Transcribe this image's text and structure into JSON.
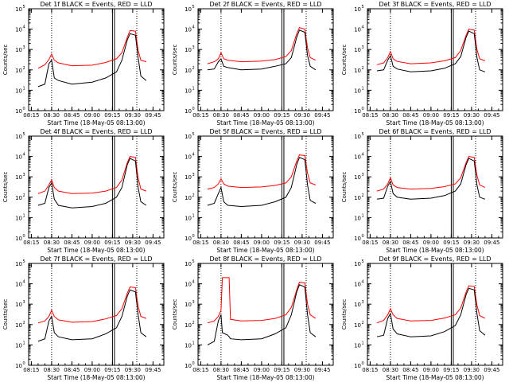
{
  "ytick_labels": [
    "10",
    "10",
    "10",
    "10",
    "10",
    "10"
  ],
  "ytick_exponents": [
    "0",
    "1",
    "2",
    "3",
    "4",
    "5"
  ],
  "xtick_labels": [
    "08:15",
    "08:30",
    "08:45",
    "09:00",
    "09:15",
    "09:30",
    "09:45"
  ],
  "chart_data": [
    {
      "type": "line",
      "title": "Det 1f BLACK = Events, RED = LLD",
      "xlabel": "Start Time (18-May-05 08:13:00)",
      "ylabel": "Counts/sec",
      "ylog": true,
      "ylim": [
        1,
        100000
      ],
      "x": [
        "08:20",
        "08:25",
        "08:28",
        "08:30",
        "08:32",
        "08:35",
        "08:45",
        "09:00",
        "09:10",
        "09:18",
        "09:22",
        "09:26",
        "09:28",
        "09:32",
        "09:34",
        "09:36",
        "09:40"
      ],
      "series": [
        {
          "color": "#ff0000",
          "values": [
            120,
            180,
            320,
            600,
            300,
            220,
            160,
            170,
            230,
            350,
            700,
            4000,
            8500,
            8000,
            900,
            300,
            250
          ]
        },
        {
          "color": "#000000",
          "values": [
            15,
            20,
            200,
            300,
            40,
            30,
            20,
            25,
            40,
            80,
            300,
            3000,
            6000,
            5000,
            400,
            50,
            30
          ]
        }
      ]
    },
    {
      "type": "line",
      "title": "Det 2f BLACK = Events, RED = LLD",
      "xlabel": "Start Time (18-May-05 08:13:00)",
      "ylabel": "Counts/sec",
      "ylog": true,
      "ylim": [
        1,
        100000
      ],
      "x": [
        "08:20",
        "08:25",
        "08:28",
        "08:30",
        "08:32",
        "08:35",
        "08:45",
        "09:00",
        "09:10",
        "09:18",
        "09:22",
        "09:26",
        "09:28",
        "09:32",
        "09:34",
        "09:36",
        "09:40"
      ],
      "series": [
        {
          "color": "#ff0000",
          "values": [
            200,
            250,
            350,
            700,
            350,
            300,
            250,
            270,
            320,
            450,
            900,
            6000,
            12000,
            10000,
            1200,
            400,
            300
          ]
        },
        {
          "color": "#000000",
          "values": [
            100,
            110,
            250,
            350,
            150,
            130,
            100,
            110,
            150,
            200,
            400,
            4000,
            9000,
            7000,
            500,
            150,
            100
          ]
        }
      ]
    },
    {
      "type": "line",
      "title": "Det 3f BLACK = Events, RED = LLD",
      "xlabel": "Start Time (18-May-05 08:13:00)",
      "ylabel": "Counts/sec",
      "ylog": true,
      "ylim": [
        1,
        100000
      ],
      "x": [
        "08:20",
        "08:25",
        "08:28",
        "08:30",
        "08:32",
        "08:35",
        "08:45",
        "09:00",
        "09:10",
        "09:18",
        "09:22",
        "09:26",
        "09:28",
        "09:32",
        "09:34",
        "09:36",
        "09:40"
      ],
      "series": [
        {
          "color": "#ff0000",
          "values": [
            180,
            220,
            400,
            800,
            350,
            260,
            200,
            220,
            280,
            400,
            900,
            5000,
            10000,
            9000,
            1000,
            350,
            280
          ]
        },
        {
          "color": "#000000",
          "values": [
            90,
            100,
            300,
            500,
            150,
            110,
            80,
            90,
            120,
            200,
            450,
            4000,
            8000,
            6000,
            400,
            100,
            80
          ]
        }
      ]
    },
    {
      "type": "line",
      "title": "Det 4f BLACK = Events, RED = LLD",
      "xlabel": "Start Time (18-May-05 08:13:00)",
      "ylabel": "Counts/sec",
      "ylog": true,
      "ylim": [
        1,
        100000
      ],
      "x": [
        "08:20",
        "08:25",
        "08:28",
        "08:30",
        "08:32",
        "08:35",
        "08:45",
        "09:00",
        "09:10",
        "09:18",
        "09:22",
        "09:26",
        "09:28",
        "09:32",
        "09:34",
        "09:36",
        "09:40"
      ],
      "series": [
        {
          "color": "#ff0000",
          "values": [
            150,
            200,
            400,
            700,
            300,
            200,
            150,
            160,
            200,
            300,
            700,
            5000,
            10000,
            9000,
            900,
            250,
            200
          ]
        },
        {
          "color": "#000000",
          "values": [
            40,
            50,
            300,
            500,
            80,
            40,
            30,
            35,
            50,
            100,
            300,
            4000,
            8000,
            6000,
            300,
            60,
            40
          ]
        }
      ]
    },
    {
      "type": "line",
      "title": "Det 5f BLACK = Events, RED = LLD",
      "xlabel": "Start Time (18-May-05 08:13:00)",
      "ylabel": "Counts/sec",
      "ylog": true,
      "ylim": [
        1,
        100000
      ],
      "x": [
        "08:20",
        "08:25",
        "08:28",
        "08:30",
        "08:32",
        "08:35",
        "08:45",
        "09:00",
        "09:10",
        "09:18",
        "09:22",
        "09:26",
        "09:28",
        "09:32",
        "09:34",
        "09:36",
        "09:40"
      ],
      "series": [
        {
          "color": "#ff0000",
          "values": [
            250,
            300,
            450,
            800,
            450,
            350,
            300,
            320,
            380,
            500,
            1000,
            6000,
            12000,
            11000,
            1500,
            500,
            400
          ]
        },
        {
          "color": "#000000",
          "values": [
            40,
            50,
            150,
            300,
            60,
            40,
            35,
            40,
            60,
            100,
            300,
            4000,
            9000,
            7000,
            400,
            70,
            50
          ]
        }
      ]
    },
    {
      "type": "line",
      "title": "Det 6f BLACK = Events, RED = LLD",
      "xlabel": "Start Time (18-May-05 08:13:00)",
      "ylabel": "Counts/sec",
      "ylog": true,
      "ylim": [
        1,
        100000
      ],
      "x": [
        "08:20",
        "08:25",
        "08:28",
        "08:30",
        "08:32",
        "08:35",
        "08:45",
        "09:00",
        "09:10",
        "09:18",
        "09:22",
        "09:26",
        "09:28",
        "09:32",
        "09:34",
        "09:36",
        "09:40"
      ],
      "series": [
        {
          "color": "#ff0000",
          "values": [
            200,
            250,
            450,
            900,
            400,
            300,
            250,
            270,
            330,
            450,
            900,
            5000,
            10000,
            9000,
            1200,
            400,
            300
          ]
        },
        {
          "color": "#000000",
          "values": [
            80,
            90,
            350,
            600,
            150,
            100,
            80,
            90,
            120,
            200,
            450,
            4000,
            8000,
            6000,
            400,
            100,
            80
          ]
        }
      ]
    },
    {
      "type": "line",
      "title": "Det 7f BLACK = Events, RED = LLD",
      "xlabel": "Start Time (18-May-05 08:13:00)",
      "ylabel": "Counts/sec",
      "ylog": true,
      "ylim": [
        1,
        100000
      ],
      "x": [
        "08:20",
        "08:25",
        "08:28",
        "08:30",
        "08:32",
        "08:35",
        "08:45",
        "09:00",
        "09:10",
        "09:18",
        "09:22",
        "09:26",
        "09:28",
        "09:32",
        "09:34",
        "09:36",
        "09:40"
      ],
      "series": [
        {
          "color": "#ff0000",
          "values": [
            120,
            150,
            250,
            500,
            250,
            170,
            130,
            140,
            190,
            280,
            600,
            3500,
            7000,
            6500,
            800,
            250,
            200
          ]
        },
        {
          "color": "#000000",
          "values": [
            15,
            20,
            150,
            250,
            40,
            25,
            18,
            20,
            35,
            70,
            250,
            2500,
            5000,
            4000,
            300,
            40,
            25
          ]
        }
      ]
    },
    {
      "type": "line",
      "title": "Det 8f BLACK = Events, RED = LLD",
      "xlabel": "Start Time (18-May-05 08:13:00)",
      "ylabel": "Counts/sec",
      "ylog": true,
      "ylim": [
        1,
        100000
      ],
      "x": [
        "08:20",
        "08:25",
        "08:28",
        "08:30",
        "08:31",
        "08:35",
        "08:36",
        "08:37",
        "08:45",
        "09:00",
        "09:10",
        "09:18",
        "09:22",
        "09:26",
        "09:28",
        "09:32",
        "09:34",
        "09:36",
        "09:40"
      ],
      "series": [
        {
          "color": "#ff0000",
          "values": [
            120,
            150,
            250,
            500,
            20000,
            20000,
            20000,
            180,
            150,
            160,
            200,
            300,
            700,
            5000,
            12000,
            11000,
            1000,
            300,
            200
          ]
        },
        {
          "color": "#000000",
          "values": [
            10,
            15,
            150,
            300,
            40,
            30,
            25,
            20,
            18,
            20,
            35,
            70,
            300,
            4000,
            9000,
            7000,
            300,
            40,
            25
          ]
        }
      ]
    },
    {
      "type": "line",
      "title": "Det 9f BLACK = Events, RED = LLD",
      "xlabel": "Start Time (18-May-05 08:13:00)",
      "ylabel": "Counts/sec",
      "ylog": true,
      "ylim": [
        1,
        100000
      ],
      "x": [
        "08:20",
        "08:25",
        "08:28",
        "08:30",
        "08:32",
        "08:35",
        "08:45",
        "09:00",
        "09:10",
        "09:18",
        "09:22",
        "09:26",
        "09:28",
        "09:32",
        "09:34",
        "09:36",
        "09:40"
      ],
      "series": [
        {
          "color": "#ff0000",
          "values": [
            120,
            160,
            300,
            600,
            300,
            200,
            150,
            160,
            210,
            300,
            650,
            4000,
            8000,
            7500,
            900,
            280,
            200
          ]
        },
        {
          "color": "#000000",
          "values": [
            25,
            30,
            200,
            350,
            60,
            35,
            25,
            28,
            45,
            90,
            300,
            3000,
            6000,
            5000,
            350,
            50,
            30
          ]
        }
      ]
    }
  ]
}
